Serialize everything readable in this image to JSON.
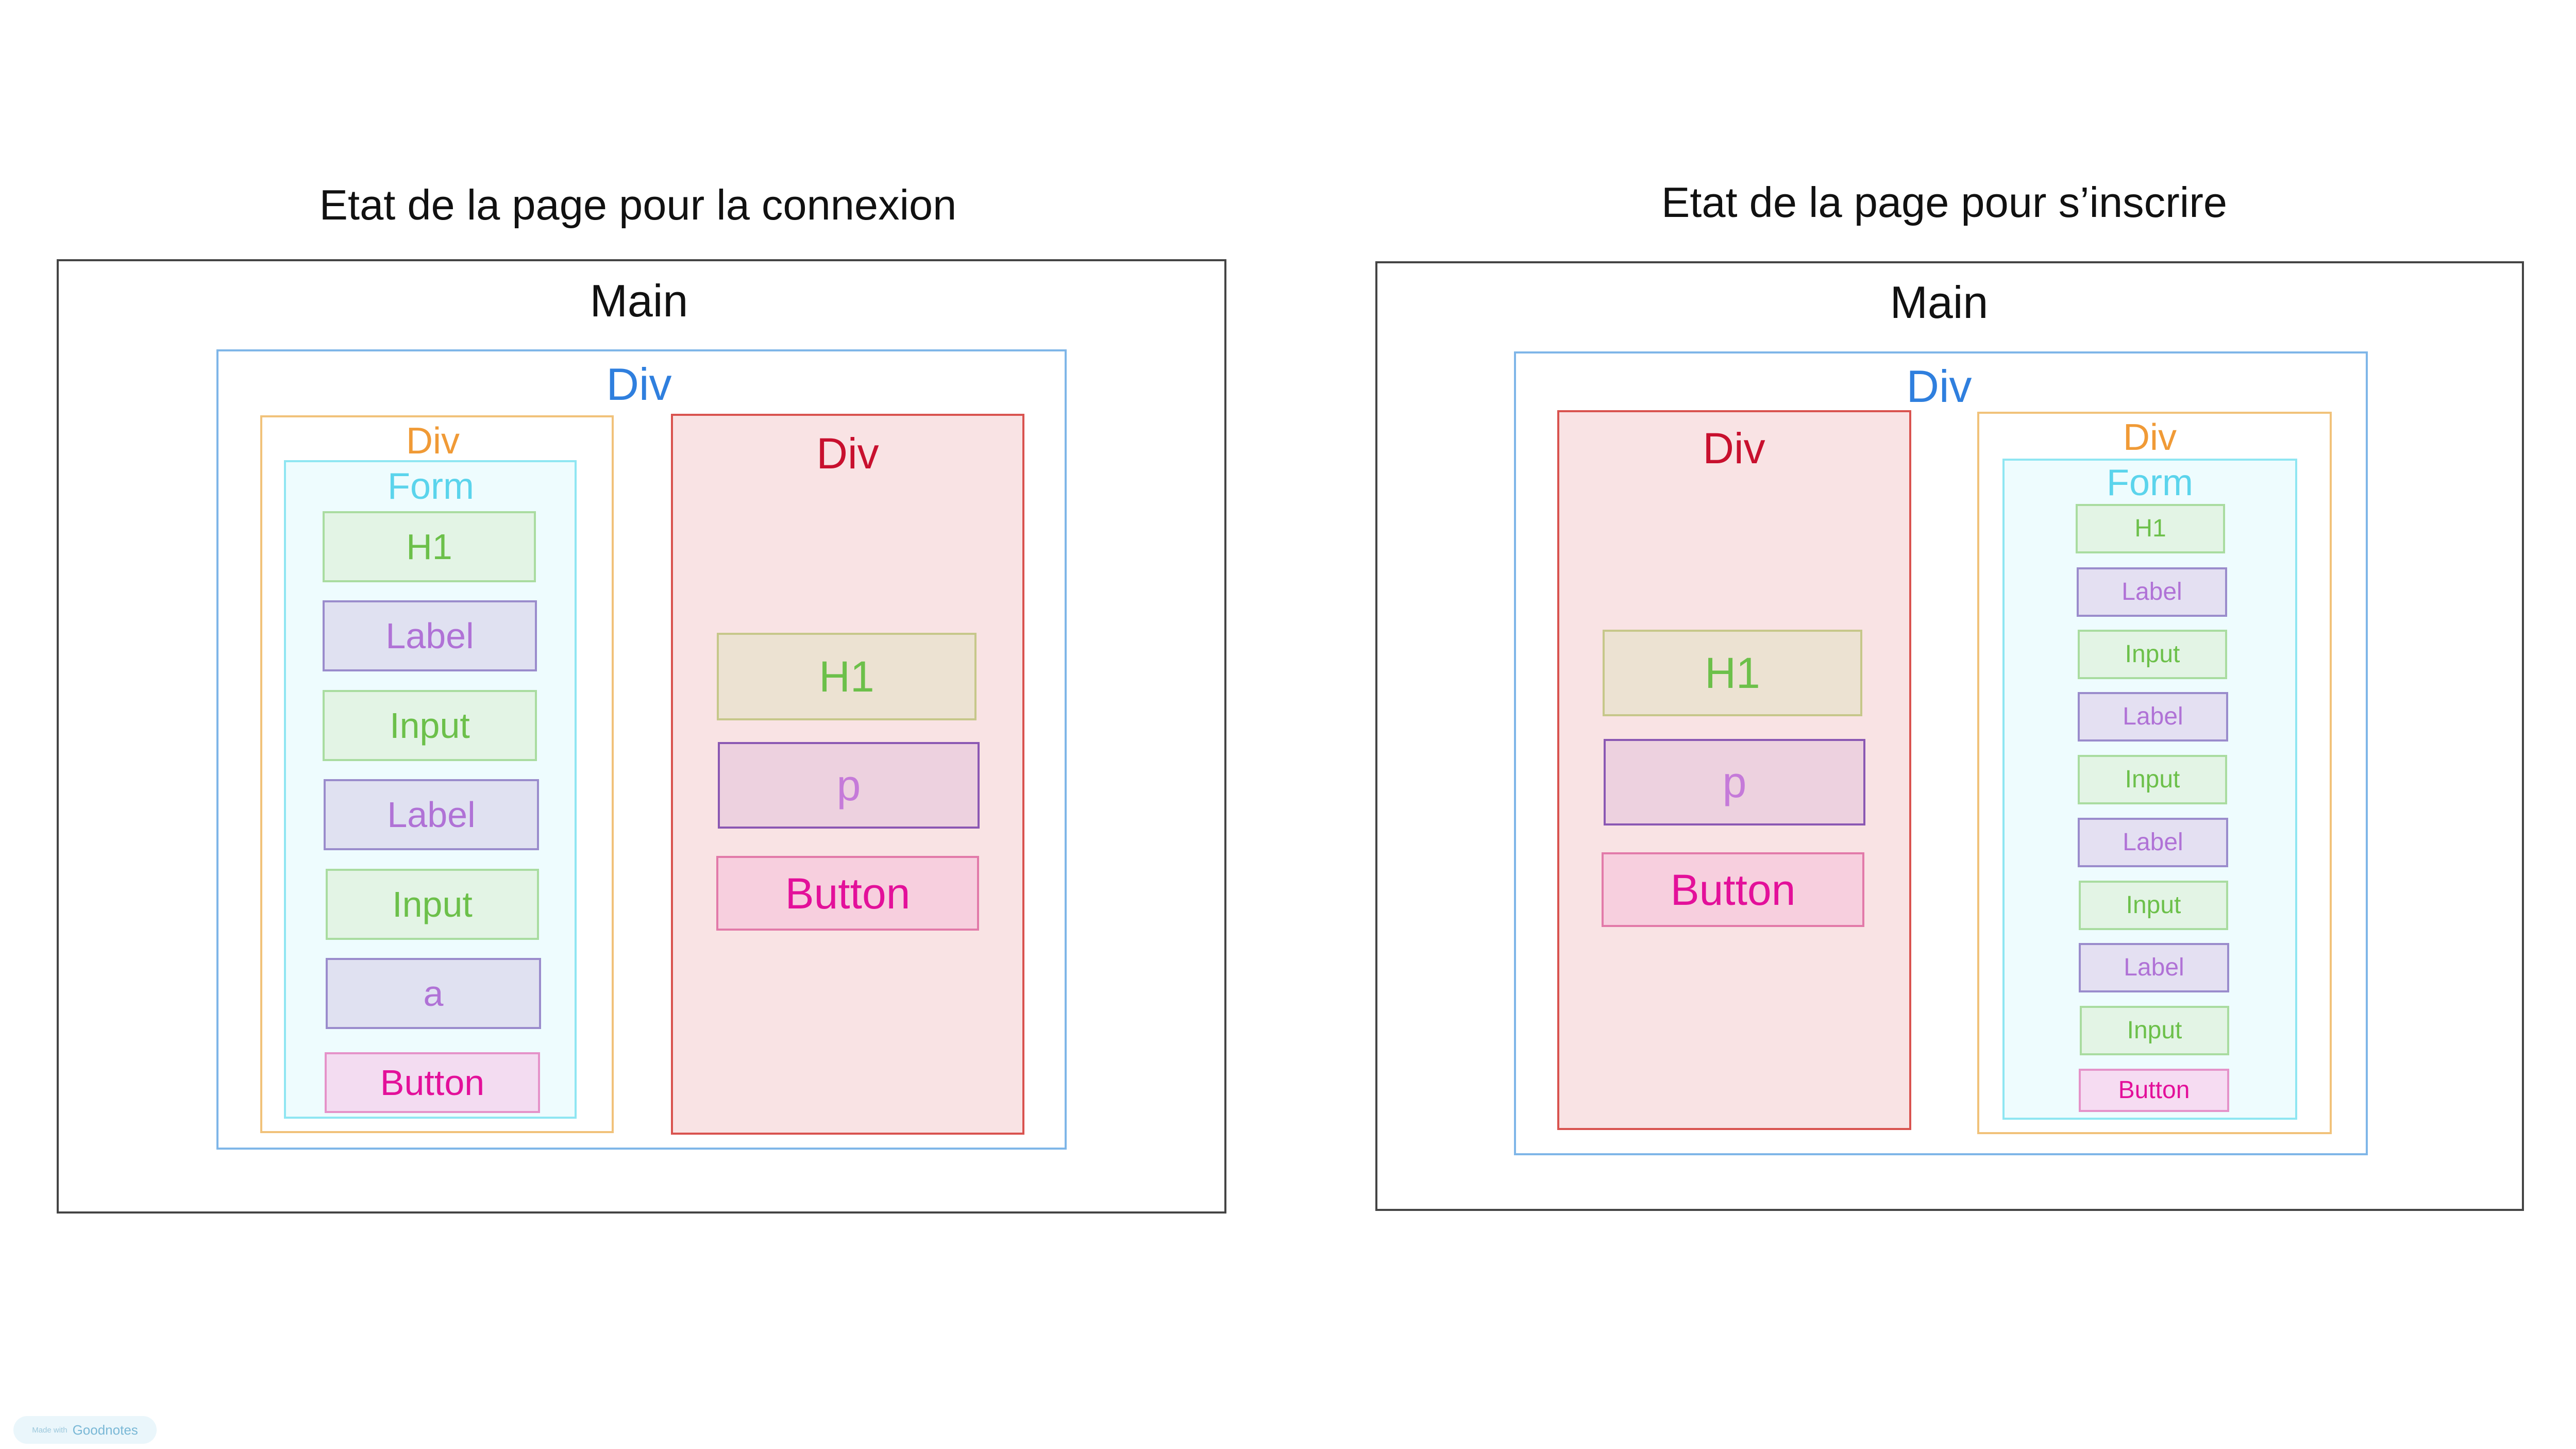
{
  "diagrams": {
    "login": {
      "title": "Etat de la page pour la connexion",
      "main_label": "Main",
      "outer_div_label": "Div",
      "form_div_label": "Div",
      "form_label": "Form",
      "form_items": [
        "H1",
        "Label",
        "Input",
        "Label",
        "Input",
        "a",
        "Button"
      ],
      "side_div_label": "Div",
      "side_items": [
        "H1",
        "p",
        "Button"
      ]
    },
    "register": {
      "title": "Etat de la page pour s’inscrire",
      "main_label": "Main",
      "outer_div_label": "Div",
      "side_div_label": "Div",
      "side_items": [
        "H1",
        "p",
        "Button"
      ],
      "form_div_label": "Div",
      "form_label": "Form",
      "form_items": [
        "H1",
        "Label",
        "Input",
        "Label",
        "Input",
        "Label",
        "Input",
        "Label",
        "Input",
        "Button"
      ]
    }
  },
  "footer": {
    "made_with": "Made with",
    "app": "Goodnotes"
  },
  "colors": {
    "main_border": "#444444",
    "outer_div": "#2f7fde",
    "form_div": "#f09a36",
    "form": "#5bd4ec",
    "side_div": "#c8102e",
    "h1_input": "#6cc04a",
    "label_a_p": "#b072d6",
    "button": "#e3109a"
  }
}
